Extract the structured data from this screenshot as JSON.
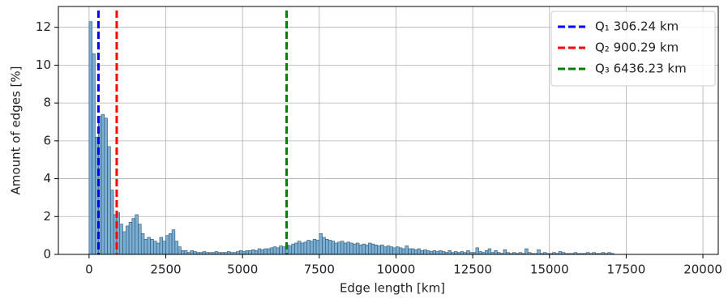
{
  "chart_data": {
    "type": "histogram",
    "xlabel": "Edge length [km]",
    "ylabel": "Amount of edges [%]",
    "bins": [
      0,
      100,
      200,
      300,
      400,
      500,
      600,
      700,
      800,
      900,
      1000,
      1100,
      1200,
      1300,
      1400,
      1500,
      1600,
      1700,
      1800,
      1900,
      2000,
      2100,
      2200,
      2300,
      2400,
      2500,
      2600,
      2700,
      2800,
      2900,
      3000,
      3100,
      3200,
      3300,
      3400,
      3500,
      3600,
      3700,
      3800,
      3900,
      4000,
      4100,
      4200,
      4300,
      4400,
      4500,
      4600,
      4700,
      4800,
      4900,
      5000,
      5100,
      5200,
      5300,
      5400,
      5500,
      5600,
      5700,
      5800,
      5900,
      6000,
      6100,
      6200,
      6300,
      6400,
      6500,
      6600,
      6700,
      6800,
      6900,
      7000,
      7100,
      7200,
      7300,
      7400,
      7500,
      7600,
      7700,
      7800,
      7900,
      8000,
      8100,
      8200,
      8300,
      8400,
      8500,
      8600,
      8700,
      8800,
      8900,
      9000,
      9100,
      9200,
      9300,
      9400,
      9500,
      9600,
      9700,
      9800,
      9900,
      10000,
      10100,
      10200,
      10300,
      10400,
      10500,
      10600,
      10700,
      10800,
      10900,
      11000,
      11100,
      11200,
      11300,
      11400,
      11500,
      11600,
      11700,
      11800,
      11900,
      12000,
      12100,
      12200,
      12300,
      12400,
      12500,
      12600,
      12700,
      12800,
      12900,
      13000,
      13100,
      13200,
      13300,
      13400,
      13500,
      13600,
      13700,
      13800,
      13900,
      14000,
      14100,
      14200,
      14300,
      14400,
      14500,
      14600,
      14700,
      14800,
      14900,
      15000,
      15100,
      15200,
      15300,
      15400,
      15500,
      15600,
      15700,
      15800,
      15900,
      16000,
      16100,
      16200,
      16300,
      16400,
      16500,
      16600,
      16700,
      16800,
      16900,
      17000,
      17100
    ],
    "values": [
      12.3,
      10.6,
      6.2,
      7.3,
      7.4,
      7.2,
      5.7,
      3.4,
      2.1,
      2.2,
      1.6,
      1.2,
      1.5,
      1.7,
      1.9,
      2.1,
      1.6,
      1.1,
      0.8,
      0.9,
      0.8,
      0.7,
      0.6,
      0.9,
      0.7,
      1.0,
      1.1,
      1.3,
      0.7,
      0.4,
      0.2,
      0.2,
      0.1,
      0.2,
      0.15,
      0.1,
      0.1,
      0.15,
      0.1,
      0.1,
      0.1,
      0.15,
      0.1,
      0.1,
      0.1,
      0.15,
      0.1,
      0.1,
      0.15,
      0.2,
      0.15,
      0.2,
      0.2,
      0.25,
      0.2,
      0.3,
      0.25,
      0.3,
      0.3,
      0.35,
      0.4,
      0.35,
      0.45,
      0.4,
      0.5,
      0.45,
      0.55,
      0.6,
      0.7,
      0.6,
      0.65,
      0.75,
      0.7,
      0.8,
      0.75,
      1.1,
      0.9,
      0.8,
      0.75,
      0.7,
      0.6,
      0.65,
      0.7,
      0.6,
      0.65,
      0.6,
      0.55,
      0.6,
      0.5,
      0.55,
      0.5,
      0.6,
      0.55,
      0.5,
      0.45,
      0.5,
      0.4,
      0.45,
      0.4,
      0.35,
      0.4,
      0.35,
      0.3,
      0.45,
      0.3,
      0.3,
      0.25,
      0.3,
      0.2,
      0.25,
      0.2,
      0.15,
      0.2,
      0.15,
      0.2,
      0.15,
      0.1,
      0.2,
      0.1,
      0.15,
      0.1,
      0.15,
      0.1,
      0.2,
      0.1,
      0.1,
      0.35,
      0.15,
      0.1,
      0.2,
      0.3,
      0.1,
      0.2,
      0.1,
      0.05,
      0.25,
      0.1,
      0.05,
      0.1,
      0.05,
      0.1,
      0.05,
      0.3,
      0.1,
      0.05,
      0.05,
      0.25,
      0.05,
      0.1,
      0.05,
      0.05,
      0.1,
      0.05,
      0.15,
      0.1,
      0.05,
      0.05,
      0.05,
      0.1,
      0.05,
      0.05,
      0.05,
      0.1,
      0.05,
      0.1,
      0.05,
      0.05,
      0.1,
      0.05,
      0.1,
      0.05
    ],
    "color": "#7aaed3",
    "vlines": [
      {
        "name": "Q₁ 306.24 km",
        "value": 306.24,
        "color": "#0000ff"
      },
      {
        "name": "Q₂ 900.29 km",
        "value": 900.29,
        "color": "#ff0000"
      },
      {
        "name": "Q₃ 6436.23 km",
        "value": 6436.23,
        "color": "#008000"
      }
    ],
    "xlim": [
      -1000,
      20500
    ],
    "ylim": [
      0,
      13.1
    ],
    "xticks": [
      0,
      2500,
      5000,
      7500,
      10000,
      12500,
      15000,
      17500,
      20000
    ],
    "yticks": [
      0,
      2,
      4,
      6,
      8,
      10,
      12
    ],
    "grid": true,
    "legend": "upper right"
  }
}
